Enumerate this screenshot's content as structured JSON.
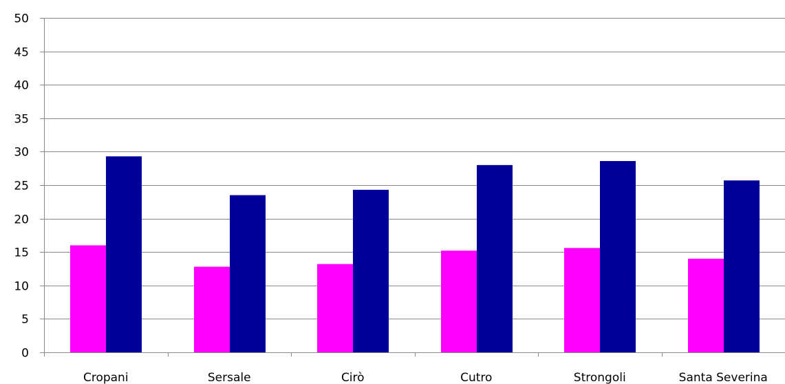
{
  "chart_data": {
    "type": "bar",
    "title": "",
    "xlabel": "",
    "ylabel": "",
    "categories": [
      "Cropani",
      "Sersale",
      "Cirò",
      "Cutro",
      "Strongoli",
      "Santa Severina"
    ],
    "series": [
      {
        "color": "#FF00FF",
        "values": [
          16.0,
          12.8,
          13.2,
          15.2,
          15.6,
          14.0
        ]
      },
      {
        "color": "#000099",
        "values": [
          29.3,
          23.5,
          24.3,
          28.0,
          28.6,
          25.7
        ]
      }
    ],
    "ylim": [
      0,
      50
    ],
    "yticks": [
      0,
      5,
      10,
      15,
      20,
      25,
      30,
      35,
      40,
      45,
      50
    ],
    "ytick_labels": [
      "0",
      "5",
      "10",
      "15",
      "20",
      "25",
      "30",
      "35",
      "40",
      "45",
      "50"
    ],
    "grid": true,
    "legend": "none",
    "gridline_color": "#868686",
    "axis_color": "#868686"
  }
}
